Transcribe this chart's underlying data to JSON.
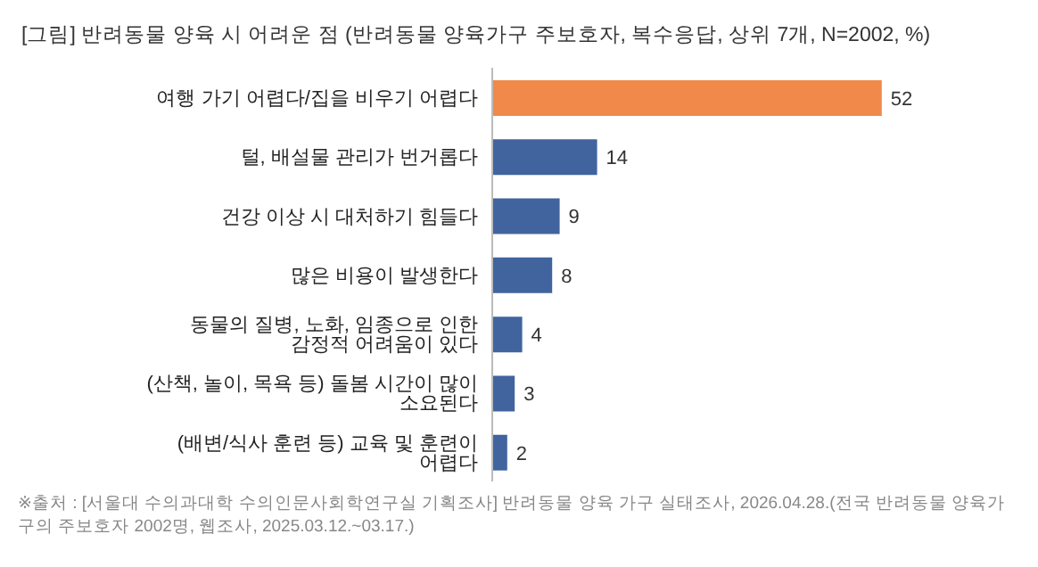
{
  "chart_data": {
    "type": "bar",
    "orientation": "horizontal",
    "title": "[그림] 반려동물 양육 시 어려운 점 (반려동물 양육가구 주보호자, 복수응답, 상위 7개, N=2002, %)",
    "categories": [
      "여행 가기 어렵다/집을 비우기 어렵다",
      "털, 배설물 관리가 번거롭다",
      "건강 이상 시 대처하기 힘들다",
      "많은 비용이 발생한다",
      "동물의 질병, 노화, 임종으로 인한 감정적 어려움이 있다",
      "(산책, 놀이, 목욕 등) 돌봄 시간이 많이 소요된다",
      "(배변/식사 훈련 등) 교육 및 훈련이 어렵다"
    ],
    "values": [
      52,
      14,
      9,
      8,
      4,
      3,
      2
    ],
    "colors": [
      "#f0894a",
      "#41649f",
      "#41649f",
      "#41649f",
      "#41649f",
      "#41649f",
      "#41649f"
    ],
    "data_labels": true,
    "tick_labels": "y",
    "grid": false,
    "legend": false,
    "annotations": [
      "※출처 : [서울대 수의과대학 수의인문사회학연구실 기획조사] 반려동물 양육 가구 실태조사, 2026.04.28.(전국 반려동물 양육가구의 주보호자 2002명, 웹조사, 2025.03.12.~03.17.)"
    ]
  }
}
